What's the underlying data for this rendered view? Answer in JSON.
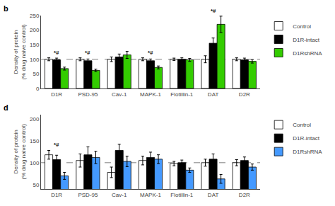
{
  "chart_data": [
    {
      "type": "bar",
      "title": "b",
      "categories": [
        "D1R",
        "PSD-95",
        "Cav-1",
        "MAPK-1",
        "Flotillin-1",
        "DAT",
        "D2R"
      ],
      "series": [
        {
          "name": "Control",
          "color": "white",
          "values": [
            100,
            100,
            100,
            100,
            100,
            100,
            100
          ],
          "errors": [
            5,
            5,
            8,
            5,
            4,
            12,
            5
          ]
        },
        {
          "name": "D1R-intact",
          "color": "black",
          "values": [
            98,
            95,
            108,
            95,
            100,
            155,
            98
          ],
          "errors": [
            6,
            6,
            10,
            6,
            5,
            18,
            6
          ]
        },
        {
          "name": "D1RshRNA",
          "color": "#33cc00",
          "values": [
            68,
            62,
            115,
            72,
            98,
            220,
            93
          ],
          "errors": [
            5,
            4,
            12,
            5,
            5,
            28,
            6
          ]
        }
      ],
      "ylabel": "Density of protein\n(% drug naive control)",
      "ylim": [
        0,
        250
      ],
      "yticks": [
        0,
        50,
        100,
        150,
        200,
        250
      ],
      "hline": 100,
      "annotations": [
        {
          "category": "D1R",
          "text": "*#"
        },
        {
          "category": "PSD-95",
          "text": "*#"
        },
        {
          "category": "MAPK-1",
          "text": "*#"
        },
        {
          "category": "DAT",
          "text": "*#"
        }
      ],
      "grid": false,
      "legend": "right"
    },
    {
      "type": "bar",
      "title": "d",
      "categories": [
        "D1R",
        "PSD-95",
        "Cav-1",
        "MAPK-1",
        "Flotillin-1",
        "DAT",
        "D2R"
      ],
      "series": [
        {
          "name": "Control",
          "color": "white",
          "values": [
            118,
            105,
            78,
            105,
            98,
            100,
            100
          ],
          "errors": [
            10,
            15,
            12,
            10,
            5,
            8,
            7
          ]
        },
        {
          "name": "D1R-intact",
          "color": "black",
          "values": [
            107,
            118,
            128,
            112,
            100,
            108,
            105
          ],
          "errors": [
            10,
            18,
            14,
            12,
            6,
            12,
            8
          ]
        },
        {
          "name": "D1RshRNA",
          "color": "#4499ff",
          "values": [
            70,
            112,
            103,
            108,
            83,
            63,
            90
          ],
          "errors": [
            8,
            14,
            12,
            10,
            5,
            10,
            7
          ]
        }
      ],
      "ylabel": "Density of protein\n(% drug naive control)",
      "ylim": [
        40,
        210
      ],
      "yticks": [
        50,
        100,
        150,
        200
      ],
      "hline": 100,
      "annotations": [
        {
          "category": "D1R",
          "text": "*#"
        }
      ],
      "grid": false,
      "legend": "right"
    }
  ]
}
